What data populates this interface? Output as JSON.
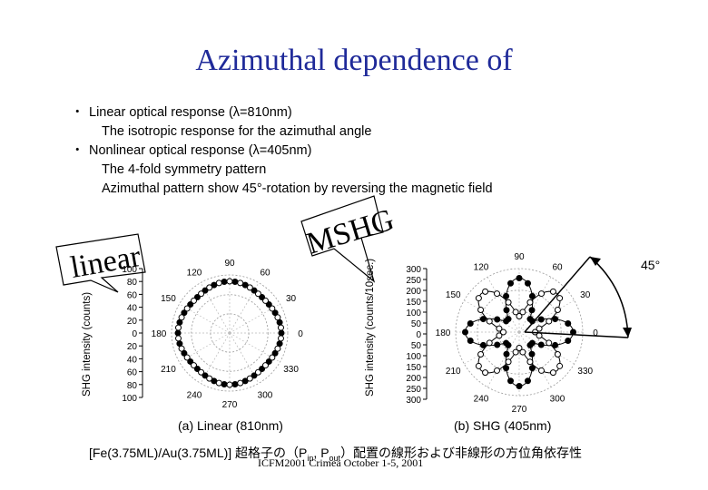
{
  "slide": {
    "title": "Azimuthal dependence of",
    "bullets": [
      {
        "marker": "・",
        "text": "Linear optical response  (λ=810nm)"
      },
      {
        "sub": "The isotropic response for the azimuthal angle"
      },
      {
        "marker": "・",
        "text": "Nonlinear optical response (λ=405nm)"
      },
      {
        "sub": "The 4-fold symmetry pattern"
      },
      {
        "sub": "Azimuthal pattern show 45°-rotation by reversing the magnetic field"
      }
    ],
    "callout_linear": "linear",
    "callout_mshg": "MSHG",
    "angle_marker": "45°",
    "left_plot": {
      "ylabel": "SHG intensity (counts)",
      "radial_ticks": [
        "100",
        "80",
        "60",
        "40",
        "20",
        "0",
        "20",
        "40",
        "60",
        "80",
        "100"
      ],
      "angle_labels": [
        "90",
        "60",
        "30",
        "0",
        "330",
        "300",
        "270",
        "240",
        "210",
        "180",
        "150",
        "120"
      ],
      "caption": "(a)  Linear (810nm)"
    },
    "right_plot": {
      "ylabel": "SHG intensity (counts/10sec.)",
      "radial_ticks": [
        "300",
        "250",
        "200",
        "150",
        "100",
        "50",
        "0",
        "50",
        "100",
        "150",
        "200",
        "250",
        "300"
      ],
      "angle_labels": [
        "90",
        "60",
        "30",
        "0",
        "330",
        "300",
        "270",
        "240",
        "210",
        "180",
        "150",
        "120"
      ],
      "caption": "(b)  SHG (405nm)"
    },
    "footer": "[Fe(3.75ML)/Au(3.75ML)] 超格子の（P",
    "footer_sub1": "in",
    "footer_mid": ", P",
    "footer_sub2": "out",
    "footer_end": "）配置の線形および非線形の方位角依存性",
    "conference": "ICFM2001 Crimea October 1-5, 2001",
    "colors": {
      "title": "#1f2a99",
      "callout_fill": "#ffffff",
      "curve": "#000000"
    }
  }
}
